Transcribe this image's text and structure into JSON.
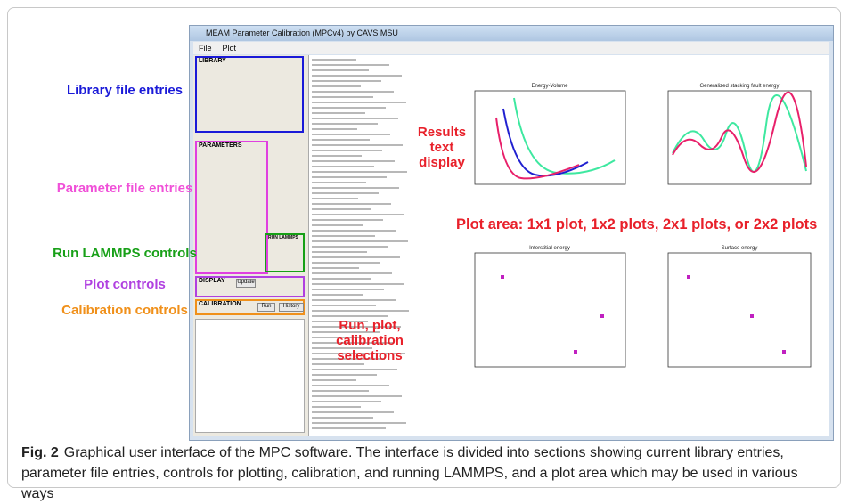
{
  "figure": {
    "window_title": "MEAM Parameter Calibration (MPCv4) by CAVS MSU",
    "menu": [
      "File",
      "Plot"
    ],
    "panels": [
      "LIBRARY",
      "PARAMETERS",
      "RUN LAMMPS",
      "DISPLAY",
      "CALIBRATION"
    ],
    "buttons": [
      "Run",
      "History",
      "Update"
    ],
    "annotations": {
      "library": "Library file entries",
      "parameter": "Parameter file entries",
      "run": "Run LAMMPS controls",
      "plot_controls": "Plot controls",
      "calibration": "Calibration controls",
      "results": "Results text display",
      "selections": "Run, plot, calibration selections",
      "plot_area": "Plot area: 1x1 plot, 1x2 plots, 2x1 plots, or 2x2 plots"
    },
    "plots": [
      {
        "title": "Energy-Volume"
      },
      {
        "title": "Generalized stacking fault energy"
      },
      {
        "title": "Interstitial energy"
      },
      {
        "title": "Surface energy"
      }
    ],
    "caption": {
      "label": "Fig. 2",
      "text": "Graphical user interface of the MPC software. The interface is divided into sections showing current library entries, parameter file entries, controls for plotting, calibration, and running LAMMPS, and a plot area which may be used in various ways"
    }
  }
}
